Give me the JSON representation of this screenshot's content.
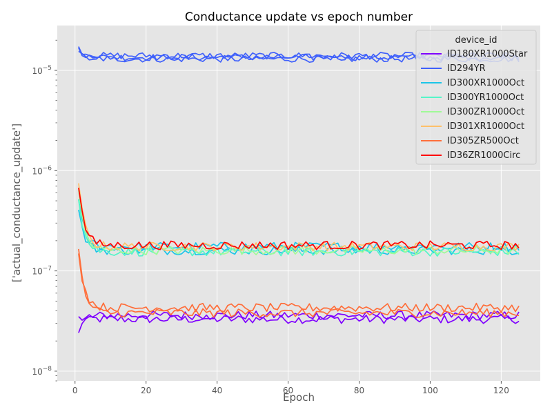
{
  "chart_data": {
    "type": "line",
    "title": "Conductance update vs epoch number",
    "xlabel": "Epoch",
    "ylabel": "['actual_conductance_update']",
    "xlim": [
      -5,
      131
    ],
    "ylim": [
      8e-09,
      2.8e-05
    ],
    "yscale": "log",
    "x_ticks": [
      0,
      20,
      40,
      60,
      80,
      100,
      120
    ],
    "x_tick_labels": [
      "0",
      "20",
      "40",
      "60",
      "80",
      "100",
      "120"
    ],
    "y_ticks": [
      1e-08,
      1e-07,
      1e-06,
      1e-05
    ],
    "y_tick_labels": [
      {
        "base": "10",
        "exp": "−8"
      },
      {
        "base": "10",
        "exp": "−7"
      },
      {
        "base": "10",
        "exp": "−6"
      },
      {
        "base": "10",
        "exp": "−5"
      }
    ],
    "grid": true,
    "legend": {
      "title": "device_id",
      "position": "top-right"
    },
    "epochs": [
      1,
      125
    ],
    "series": [
      {
        "name": "ID180XR1000Star",
        "color": "#7f00ff",
        "start": [
          3.4e-08,
          2.4e-08
        ],
        "level": [
          3.3e-08,
          3.6e-08
        ]
      },
      {
        "name": "ID294YR",
        "color": "#3f60fb",
        "start": [
          1.6e-05,
          1.5e-05,
          1.7e-05
        ],
        "level": [
          1.3e-05,
          1.35e-05,
          1.4e-05
        ]
      },
      {
        "name": "ID300XR1000Oct",
        "color": "#1bc5e8",
        "start": [
          5e-07,
          4e-07
        ],
        "level": [
          1.75e-07,
          1.6e-07
        ]
      },
      {
        "name": "ID300YR1000Oct",
        "color": "#55f5c8",
        "start": [
          5.5e-07
        ],
        "level": [
          1.55e-07
        ]
      },
      {
        "name": "ID300ZR1000Oct",
        "color": "#a0fa97",
        "start": [
          6.5e-07
        ],
        "level": [
          1.6e-07
        ]
      },
      {
        "name": "ID301XR1000Oct",
        "color": "#fdc06a",
        "start": [
          7.8e-07
        ],
        "level": [
          1.75e-07
        ]
      },
      {
        "name": "ID305ZR500Oct",
        "color": "#ff6e3a",
        "start": [
          1.6e-07
        ],
        "level": [
          4.3e-08,
          3.8e-08
        ]
      },
      {
        "name": "ID36ZR1000Circ",
        "color": "#ff0000",
        "start": [
          7.2e-07
        ],
        "level": [
          1.8e-07
        ]
      }
    ]
  }
}
